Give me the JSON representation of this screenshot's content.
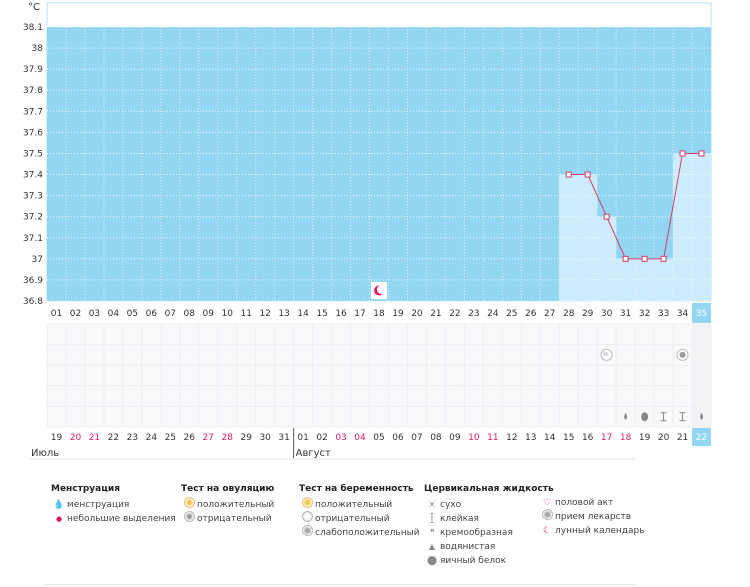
{
  "chart_data": {
    "type": "line",
    "unit_label": "°C",
    "y_ticks": [
      "38.1",
      "38",
      "37.9",
      "37.8",
      "37.7",
      "37.6",
      "37.5",
      "37.4",
      "37.3",
      "37.2",
      "37.1",
      "37",
      "36.9",
      "36.8"
    ],
    "ylim": [
      36.8,
      38.1
    ],
    "cycle_days": [
      "01",
      "02",
      "03",
      "04",
      "05",
      "06",
      "07",
      "08",
      "09",
      "10",
      "11",
      "12",
      "13",
      "14",
      "15",
      "16",
      "17",
      "18",
      "19",
      "20",
      "21",
      "22",
      "23",
      "24",
      "25",
      "26",
      "27",
      "28",
      "29",
      "30",
      "31",
      "32",
      "33",
      "34",
      "35"
    ],
    "dates": [
      "19",
      "20",
      "21",
      "22",
      "23",
      "24",
      "25",
      "26",
      "27",
      "28",
      "29",
      "30",
      "31",
      "01",
      "02",
      "03",
      "04",
      "05",
      "06",
      "07",
      "08",
      "09",
      "10",
      "11",
      "12",
      "13",
      "14",
      "15",
      "16",
      "17",
      "18",
      "19",
      "20",
      "21",
      "22"
    ],
    "date_red": [
      false,
      true,
      true,
      false,
      false,
      false,
      false,
      false,
      true,
      true,
      false,
      false,
      false,
      false,
      false,
      true,
      true,
      false,
      false,
      false,
      false,
      false,
      true,
      true,
      false,
      false,
      false,
      false,
      false,
      true,
      true,
      false,
      false,
      false,
      false
    ],
    "months": [
      {
        "name": "Июль",
        "start_index": 0
      },
      {
        "name": "Август",
        "start_index": 13
      }
    ],
    "current_day_index": 34,
    "series": [
      {
        "values": [
          null,
          null,
          null,
          null,
          null,
          null,
          null,
          null,
          null,
          null,
          null,
          null,
          null,
          null,
          null,
          null,
          null,
          null,
          null,
          null,
          null,
          null,
          null,
          null,
          null,
          null,
          null,
          37.4,
          37.4,
          37.2,
          37.0,
          37.0,
          37.0,
          37.5,
          37.5
        ]
      }
    ],
    "markers": [
      {
        "row": "temperature",
        "day_index": 17,
        "icon": "lunar-calendar-icon"
      },
      {
        "row": "pregnancy-test",
        "day_index": 29,
        "icon": "pregnancy-test-negative-icon"
      },
      {
        "row": "pregnancy-test",
        "day_index": 33,
        "icon": "pregnancy-test-weak-icon"
      },
      {
        "row": "cervical-fluid",
        "day_index": 30,
        "icon": "watery-icon"
      },
      {
        "row": "cervical-fluid",
        "day_index": 31,
        "icon": "egg-white-icon"
      },
      {
        "row": "cervical-fluid",
        "day_index": 32,
        "icon": "sticky-icon"
      },
      {
        "row": "cervical-fluid",
        "day_index": 33,
        "icon": "sticky-icon"
      },
      {
        "row": "cervical-fluid",
        "day_index": 34,
        "icon": "watery-icon"
      }
    ],
    "colors": {
      "fill": "#93d6f2",
      "area": "#cdecfb",
      "line": "#d63c6a",
      "grid": "#ffffff",
      "empty_row": "#f9f8fa",
      "red_text": "#e0205a",
      "current": "#93d6f2"
    }
  },
  "legend": {
    "menstruation": {
      "title": "Менструация",
      "items": [
        {
          "icon": "menstruation-drop-icon",
          "label": "менструация"
        },
        {
          "icon": "light-spotting-drop-icon",
          "label": "небольшие выделения"
        }
      ]
    },
    "ovulation_test": {
      "title": "Тест на овуляцию",
      "items": [
        {
          "icon": "ovulation-positive-icon",
          "label": "положительный"
        },
        {
          "icon": "ovulation-negative-icon",
          "label": "отрицательный"
        }
      ]
    },
    "pregnancy_test": {
      "title": "Тест на беременность",
      "items": [
        {
          "icon": "pregnancy-positive-icon",
          "label": "положительный"
        },
        {
          "icon": "pregnancy-negative-icon",
          "label": "отрицательный"
        },
        {
          "icon": "pregnancy-weak-icon",
          "label": "слабоположительный"
        }
      ]
    },
    "cervical_fluid": {
      "title": "Цервикальная жидкость",
      "items": [
        {
          "icon": "dry-icon",
          "label": "сухо"
        },
        {
          "icon": "sticky-icon",
          "label": "клейкая"
        },
        {
          "icon": "creamy-icon",
          "label": "кремообразная"
        },
        {
          "icon": "watery-icon",
          "label": "водянистая"
        },
        {
          "icon": "egg-white-icon",
          "label": "яичный белок"
        }
      ]
    },
    "other": {
      "items": [
        {
          "icon": "heart-icon",
          "label": "половой акт"
        },
        {
          "icon": "medication-icon",
          "label": "прием лекарств"
        },
        {
          "icon": "lunar-calendar-icon",
          "label": "лунный календарь"
        }
      ]
    }
  }
}
